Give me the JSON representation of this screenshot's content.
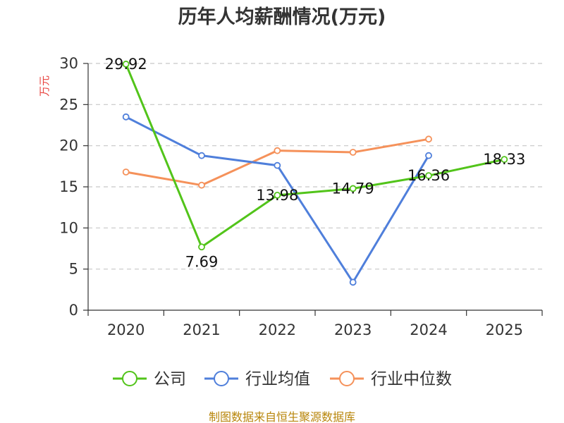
{
  "chart_data": {
    "type": "line",
    "title": "历年人均薪酬情况(万元)",
    "ylabel": "万元",
    "xlabel": "",
    "categories": [
      "2020",
      "2021",
      "2022",
      "2023",
      "2024",
      "2025"
    ],
    "ylim": [
      0,
      30
    ],
    "yticks": [
      0,
      5,
      10,
      15,
      20,
      25,
      30
    ],
    "grid": true,
    "legend_position": "bottom",
    "series": [
      {
        "name": "公司",
        "color": "#52c41a",
        "values": [
          29.92,
          7.69,
          13.98,
          14.79,
          16.36,
          18.33
        ],
        "labels": [
          "29.92",
          "7.69",
          "13.98",
          "14.79",
          "16.36",
          "18.33"
        ]
      },
      {
        "name": "行业均值",
        "color": "#4f7fdb",
        "values": [
          23.5,
          18.8,
          17.6,
          3.4,
          18.8,
          null
        ]
      },
      {
        "name": "行业中位数",
        "color": "#f5915a",
        "values": [
          16.8,
          15.2,
          19.4,
          19.2,
          20.8,
          null
        ]
      }
    ],
    "source": "制图数据来自恒生聚源数据库"
  }
}
